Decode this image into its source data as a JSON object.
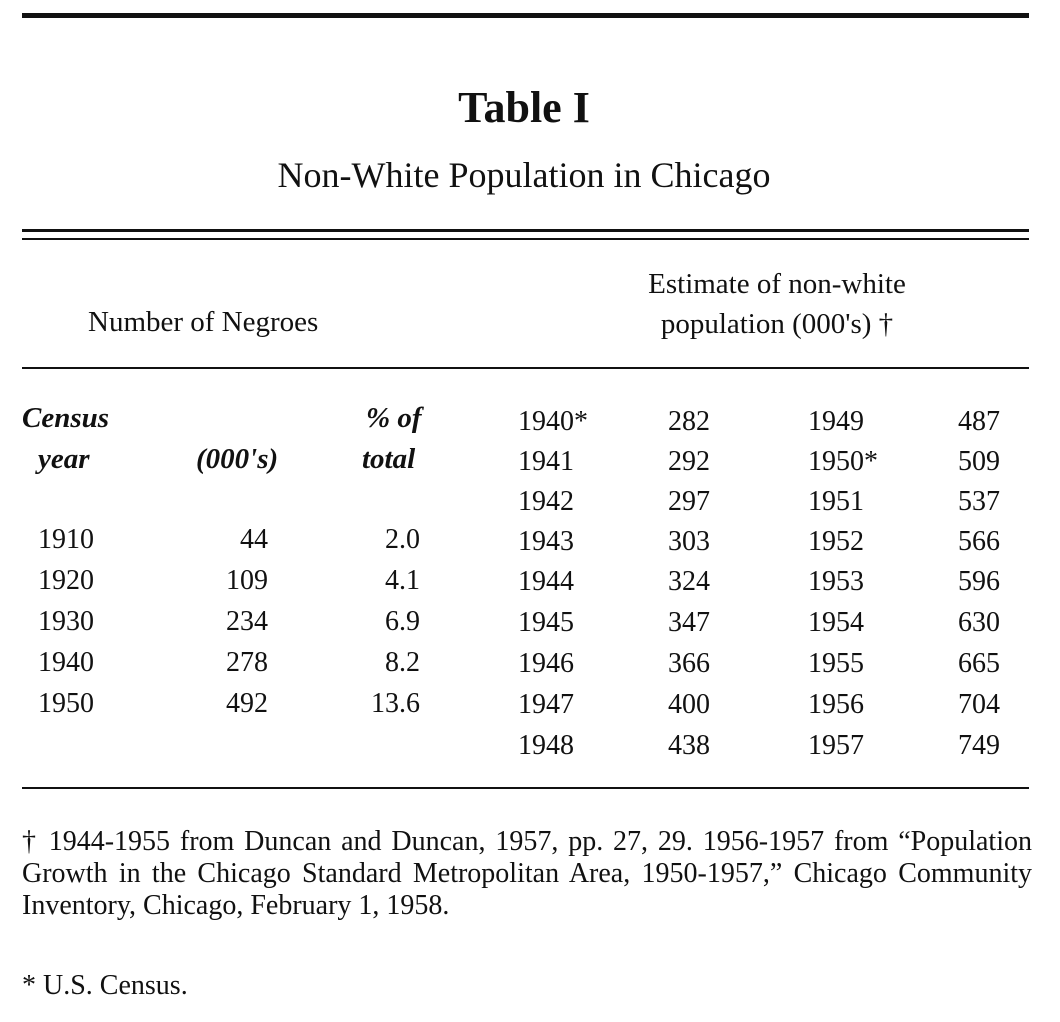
{
  "title": "Table I",
  "subtitle": "Non-White Population in Chicago",
  "left_header": "Number of Negroes",
  "right_header_line1": "Estimate of non-white",
  "right_header_line2": "population (000's) †",
  "left_columns": {
    "year_line1": "Census",
    "year_line2": "year",
    "count_line2": "(000's)",
    "pct_line1": "% of",
    "pct_line2": "total"
  },
  "census_rows": [
    {
      "year": "1910",
      "count": "44",
      "pct": "2.0"
    },
    {
      "year": "1920",
      "count": "109",
      "pct": "4.1"
    },
    {
      "year": "1930",
      "count": "234",
      "pct": "6.9"
    },
    {
      "year": "1940",
      "count": "278",
      "pct": "8.2"
    },
    {
      "year": "1950",
      "count": "492",
      "pct": "13.6"
    }
  ],
  "estimate_left": [
    {
      "year": "1940*",
      "value": "282"
    },
    {
      "year": "1941",
      "value": "292"
    },
    {
      "year": "1942",
      "value": "297"
    },
    {
      "year": "1943",
      "value": "303"
    },
    {
      "year": "1944",
      "value": "324"
    },
    {
      "year": "1945",
      "value": "347"
    },
    {
      "year": "1946",
      "value": "366"
    },
    {
      "year": "1947",
      "value": "400"
    },
    {
      "year": "1948",
      "value": "438"
    }
  ],
  "estimate_right": [
    {
      "year": "1949",
      "value": "487"
    },
    {
      "year": "1950*",
      "value": "509"
    },
    {
      "year": "1951",
      "value": "537"
    },
    {
      "year": "1952",
      "value": "566"
    },
    {
      "year": "1953",
      "value": "596"
    },
    {
      "year": "1954",
      "value": "630"
    },
    {
      "year": "1955",
      "value": "665"
    },
    {
      "year": "1956",
      "value": "704"
    },
    {
      "year": "1957",
      "value": "749"
    }
  ],
  "footnote_dagger": "† 1944-1955 from Duncan and Duncan, 1957, pp. 27, 29. 1956-1957 from “Population Growth in the Chicago Standard Metropolitan Area, 1950-1957,” Chicago Community Inventory, Chicago, February 1, 1958.",
  "footnote_star": "* U.S. Census."
}
